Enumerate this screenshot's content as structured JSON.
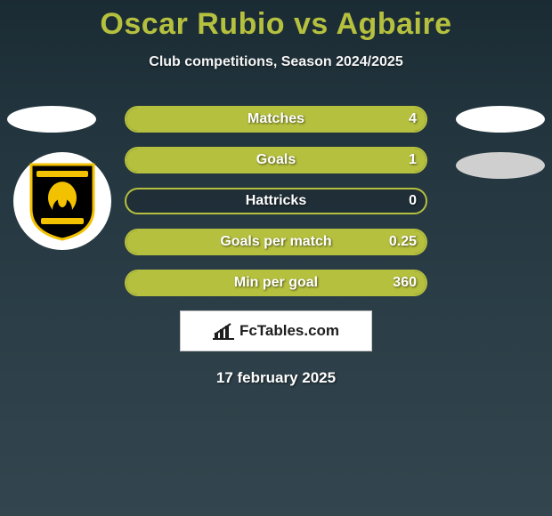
{
  "header": {
    "title": "Oscar Rubio vs Agbaire",
    "subtitle": "Club competitions, Season 2024/2025",
    "title_color": "#b5c03e"
  },
  "accent_color": "#b5c03e",
  "bars": [
    {
      "label": "Matches",
      "left": "",
      "right": "4",
      "left_pct": 0,
      "right_pct": 100
    },
    {
      "label": "Goals",
      "left": "",
      "right": "1",
      "left_pct": 0,
      "right_pct": 100
    },
    {
      "label": "Hattricks",
      "left": "",
      "right": "0",
      "left_pct": 0,
      "right_pct": 0
    },
    {
      "label": "Goals per match",
      "left": "",
      "right": "0.25",
      "left_pct": 0,
      "right_pct": 100
    },
    {
      "label": "Min per goal",
      "left": "",
      "right": "360",
      "left_pct": 0,
      "right_pct": 100
    }
  ],
  "brand": {
    "text": "FcTables.com"
  },
  "date": "17 february 2025",
  "crest": {
    "bg": "#000000",
    "border": "#f2c200",
    "motto_top": "",
    "motto_bottom": ""
  }
}
